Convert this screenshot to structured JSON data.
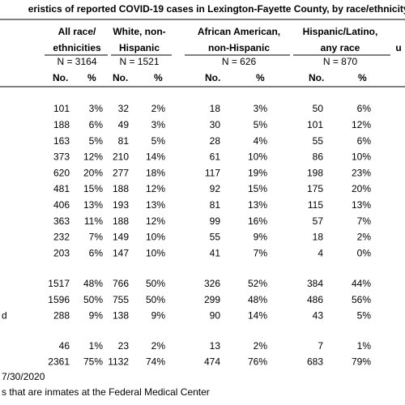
{
  "table": {
    "title": "eristics of reported COVID-19 cases in Lexington-Fayette County, by race/ethnicity*",
    "partial_column": "u",
    "groups": [
      {
        "lines": [
          "All race/",
          "ethnicities"
        ],
        "n": "N = 3164"
      },
      {
        "lines": [
          "White, non-",
          "Hispanic"
        ],
        "n": "N = 1521"
      },
      {
        "lines": [
          "African American,",
          "non-Hispanic"
        ],
        "n": "N = 626"
      },
      {
        "lines": [
          "Hispanic/Latino,",
          "any race"
        ],
        "n": "N = 870"
      }
    ],
    "subheaders": [
      "No.",
      "%"
    ],
    "rows": [
      {
        "cells": [
          "101",
          "3%",
          "32",
          "2%",
          "18",
          "3%",
          "50",
          "6%"
        ]
      },
      {
        "cells": [
          "188",
          "6%",
          "49",
          "3%",
          "30",
          "5%",
          "101",
          "12%"
        ]
      },
      {
        "cells": [
          "163",
          "5%",
          "81",
          "5%",
          "28",
          "4%",
          "55",
          "6%"
        ]
      },
      {
        "cells": [
          "373",
          "12%",
          "210",
          "14%",
          "61",
          "10%",
          "86",
          "10%"
        ]
      },
      {
        "cells": [
          "620",
          "20%",
          "277",
          "18%",
          "117",
          "19%",
          "198",
          "23%"
        ]
      },
      {
        "cells": [
          "481",
          "15%",
          "188",
          "12%",
          "92",
          "15%",
          "175",
          "20%"
        ]
      },
      {
        "cells": [
          "406",
          "13%",
          "193",
          "13%",
          "81",
          "13%",
          "115",
          "13%"
        ]
      },
      {
        "cells": [
          "363",
          "11%",
          "188",
          "12%",
          "99",
          "16%",
          "57",
          "7%"
        ]
      },
      {
        "cells": [
          "232",
          "7%",
          "149",
          "10%",
          "55",
          "9%",
          "18",
          "2%"
        ]
      },
      {
        "cells": [
          "203",
          "6%",
          "147",
          "10%",
          "41",
          "7%",
          "4",
          "0%"
        ]
      },
      {
        "cells": [
          "1517",
          "48%",
          "766",
          "50%",
          "326",
          "52%",
          "384",
          "44%"
        ]
      },
      {
        "cells": [
          "1596",
          "50%",
          "755",
          "50%",
          "299",
          "48%",
          "486",
          "56%"
        ]
      },
      {
        "label": "d",
        "cells": [
          "288",
          "9%",
          "138",
          "9%",
          "90",
          "14%",
          "43",
          "5%"
        ]
      },
      {
        "cells": [
          "46",
          "1%",
          "23",
          "2%",
          "13",
          "2%",
          "7",
          "1%"
        ]
      },
      {
        "cells": [
          "2361",
          "75%",
          "1132",
          "74%",
          "474",
          "76%",
          "683",
          "79%"
        ]
      }
    ]
  },
  "footer": {
    "date": "7/30/2020",
    "note": "s that are inmates at the Federal Medical Center"
  }
}
